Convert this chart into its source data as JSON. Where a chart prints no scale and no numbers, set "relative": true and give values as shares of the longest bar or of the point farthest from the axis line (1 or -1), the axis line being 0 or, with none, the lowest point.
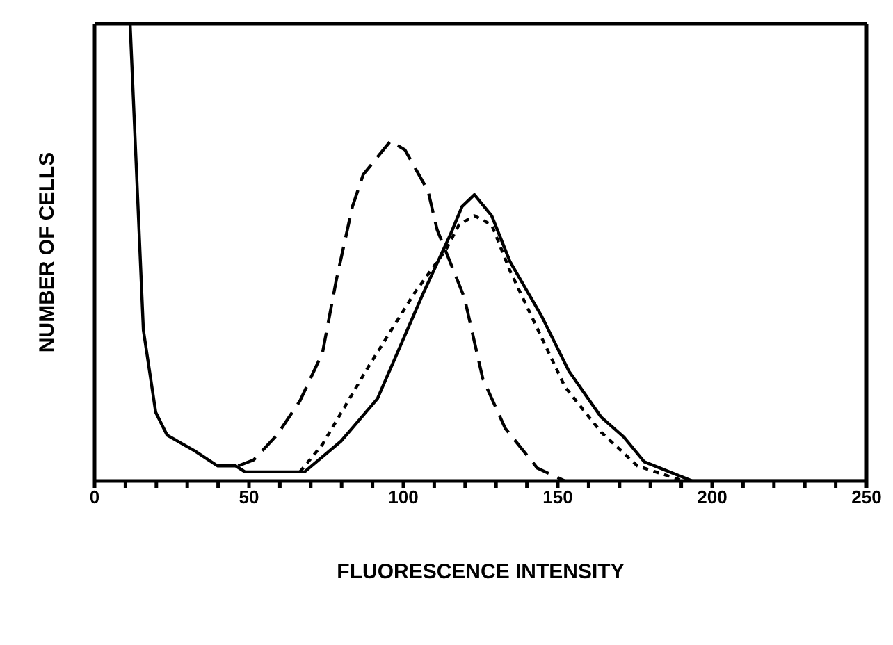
{
  "chart_data": {
    "type": "line",
    "xlabel": "FLUORESCENCE INTENSITY",
    "ylabel": "NUMBER OF CELLS",
    "relative": true,
    "xlim": [
      0,
      250
    ],
    "xticks": [
      0,
      {
        "value": 10,
        "label": null
      },
      {
        "value": 20,
        "label": null
      },
      {
        "value": 30,
        "label": null
      },
      {
        "value": 40,
        "label": null
      },
      50,
      {
        "value": 60,
        "label": null
      },
      {
        "value": 70,
        "label": null
      },
      {
        "value": 80,
        "label": null
      },
      {
        "value": 90,
        "label": null
      },
      100,
      {
        "value": 110,
        "label": null
      },
      {
        "value": 120,
        "label": null
      },
      {
        "value": 130,
        "label": null
      },
      {
        "value": 140,
        "label": null
      },
      150,
      {
        "value": 160,
        "label": null
      },
      {
        "value": 170,
        "label": null
      },
      {
        "value": 180,
        "label": null
      },
      {
        "value": 190,
        "label": null
      },
      200,
      {
        "value": 210,
        "label": null
      },
      {
        "value": 220,
        "label": null
      },
      {
        "value": 230,
        "label": null
      },
      {
        "value": 240,
        "label": null
      },
      250
    ],
    "grid": false,
    "marker": "none",
    "series": [
      {
        "color": "#000000",
        "line_style": "solid",
        "x": [
          11.5,
          15.8,
          19.8,
          23.5,
          32.4,
          39.8,
          45.7,
          48.7,
          68,
          79.8,
          91.6,
          106.4,
          115.3,
          119,
          123,
          128.6,
          134.5,
          144.8,
          153.6,
          164,
          171.4,
          178,
          193.6,
          250
        ],
        "values": [
          1,
          0.33,
          0.15,
          0.1,
          0.066,
          0.033,
          0.033,
          0.02,
          0.02,
          0.087,
          0.18,
          0.41,
          0.54,
          0.6,
          0.626,
          0.58,
          0.48,
          0.36,
          0.24,
          0.14,
          0.096,
          0.042,
          0,
          0
        ]
      },
      {
        "color": "#000000",
        "line_style": "dashed",
        "x": [
          46.5,
          51.5,
          59,
          66.5,
          73.8,
          78.3,
          83.5,
          87,
          95.8,
          100.5,
          108,
          110.9,
          119.8,
          125.7,
          133,
          143.4,
          152.3
        ],
        "values": [
          0.033,
          0.046,
          0.1,
          0.175,
          0.28,
          0.44,
          0.6,
          0.67,
          0.743,
          0.724,
          0.634,
          0.55,
          0.4,
          0.224,
          0.115,
          0.028,
          0
        ]
      },
      {
        "color": "#000000",
        "line_style": "dotted",
        "x": [
          66.5,
          73.8,
          88.7,
          103.5,
          113.8,
          118,
          123,
          128.6,
          134.5,
          143.4,
          152.3,
          164,
          175.8,
          190.8
        ],
        "values": [
          0.02,
          0.08,
          0.25,
          0.41,
          0.506,
          0.56,
          0.58,
          0.56,
          0.46,
          0.333,
          0.206,
          0.107,
          0.033,
          0
        ]
      }
    ]
  }
}
